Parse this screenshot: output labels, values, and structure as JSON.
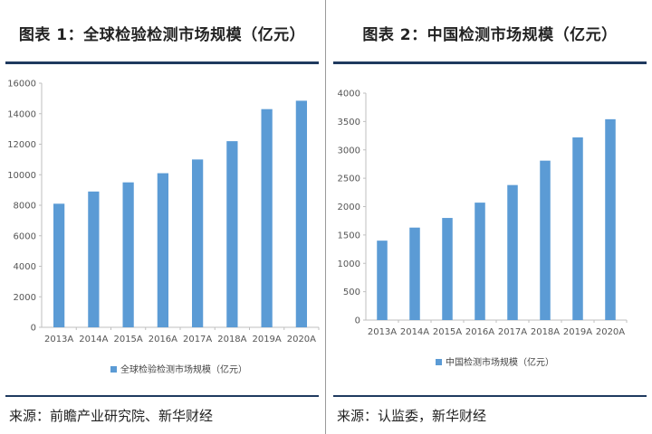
{
  "left": {
    "title": "图表 1：全球检验检测市场规模（亿元）",
    "source": "来源：前瞻产业研究院、新华财经",
    "chart_data": {
      "type": "bar",
      "categories": [
        "2013A",
        "2014A",
        "2015A",
        "2016A",
        "2017A",
        "2018A",
        "2019A",
        "2020A"
      ],
      "series": [
        {
          "name": "全球检验检测市场规模（亿元）",
          "values": [
            8100,
            8900,
            9500,
            10100,
            11000,
            12200,
            14300,
            14850
          ]
        }
      ],
      "ylim": [
        0,
        16000
      ],
      "yticks": [
        0,
        2000,
        4000,
        6000,
        8000,
        10000,
        12000,
        14000,
        16000
      ],
      "legend": "bottom",
      "grid": false,
      "color": "#5b9bd5"
    }
  },
  "right": {
    "title": "图表 2：中国检测市场规模（亿元）",
    "source": "来源：认监委，新华财经",
    "chart_data": {
      "type": "bar",
      "categories": [
        "2013A",
        "2014A",
        "2015A",
        "2016A",
        "2017A",
        "2018A",
        "2019A",
        "2020A"
      ],
      "series": [
        {
          "name": "中国检测市场规模（亿元）",
          "values": [
            1400,
            1630,
            1800,
            2070,
            2380,
            2810,
            3220,
            3540
          ]
        }
      ],
      "ylim": [
        0,
        4000
      ],
      "yticks": [
        0,
        500,
        1000,
        1500,
        2000,
        2500,
        3000,
        3500,
        4000
      ],
      "legend": "bottom",
      "grid": false,
      "color": "#5b9bd5"
    }
  }
}
